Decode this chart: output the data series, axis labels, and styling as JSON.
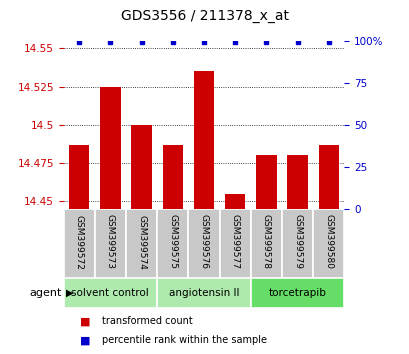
{
  "title": "GDS3556 / 211378_x_at",
  "samples": [
    "GSM399572",
    "GSM399573",
    "GSM399574",
    "GSM399575",
    "GSM399576",
    "GSM399577",
    "GSM399578",
    "GSM399579",
    "GSM399580"
  ],
  "red_values": [
    14.487,
    14.525,
    14.5,
    14.487,
    14.535,
    14.455,
    14.48,
    14.48,
    14.487
  ],
  "blue_values": [
    99,
    99,
    99,
    99,
    99,
    99,
    99,
    99,
    99
  ],
  "ylim_left": [
    14.445,
    14.555
  ],
  "ylim_right": [
    0,
    100
  ],
  "yticks_left": [
    14.45,
    14.475,
    14.5,
    14.525,
    14.55
  ],
  "yticks_right": [
    0,
    25,
    50,
    75,
    100
  ],
  "ytick_labels_left": [
    "14.45",
    "14.475",
    "14.5",
    "14.525",
    "14.55"
  ],
  "ytick_labels_right": [
    "0",
    "25",
    "50",
    "75",
    "100%"
  ],
  "groups": [
    {
      "label": "solvent control",
      "start": 0,
      "end": 3
    },
    {
      "label": "angiotensin II",
      "start": 3,
      "end": 6
    },
    {
      "label": "torcetrapib",
      "start": 6,
      "end": 9
    }
  ],
  "group_colors": [
    "#aeeaae",
    "#aeeaae",
    "#66dd66"
  ],
  "bar_color": "#CC0000",
  "dot_color": "#0000CC",
  "bar_width": 0.65,
  "agent_label": "agent",
  "legend": [
    {
      "color": "#CC0000",
      "label": "transformed count"
    },
    {
      "color": "#0000CC",
      "label": "percentile rank within the sample"
    }
  ],
  "grid_color": "black",
  "background_color": "white",
  "tick_color_left": "#CC0000",
  "tick_color_right": "#0000CC"
}
